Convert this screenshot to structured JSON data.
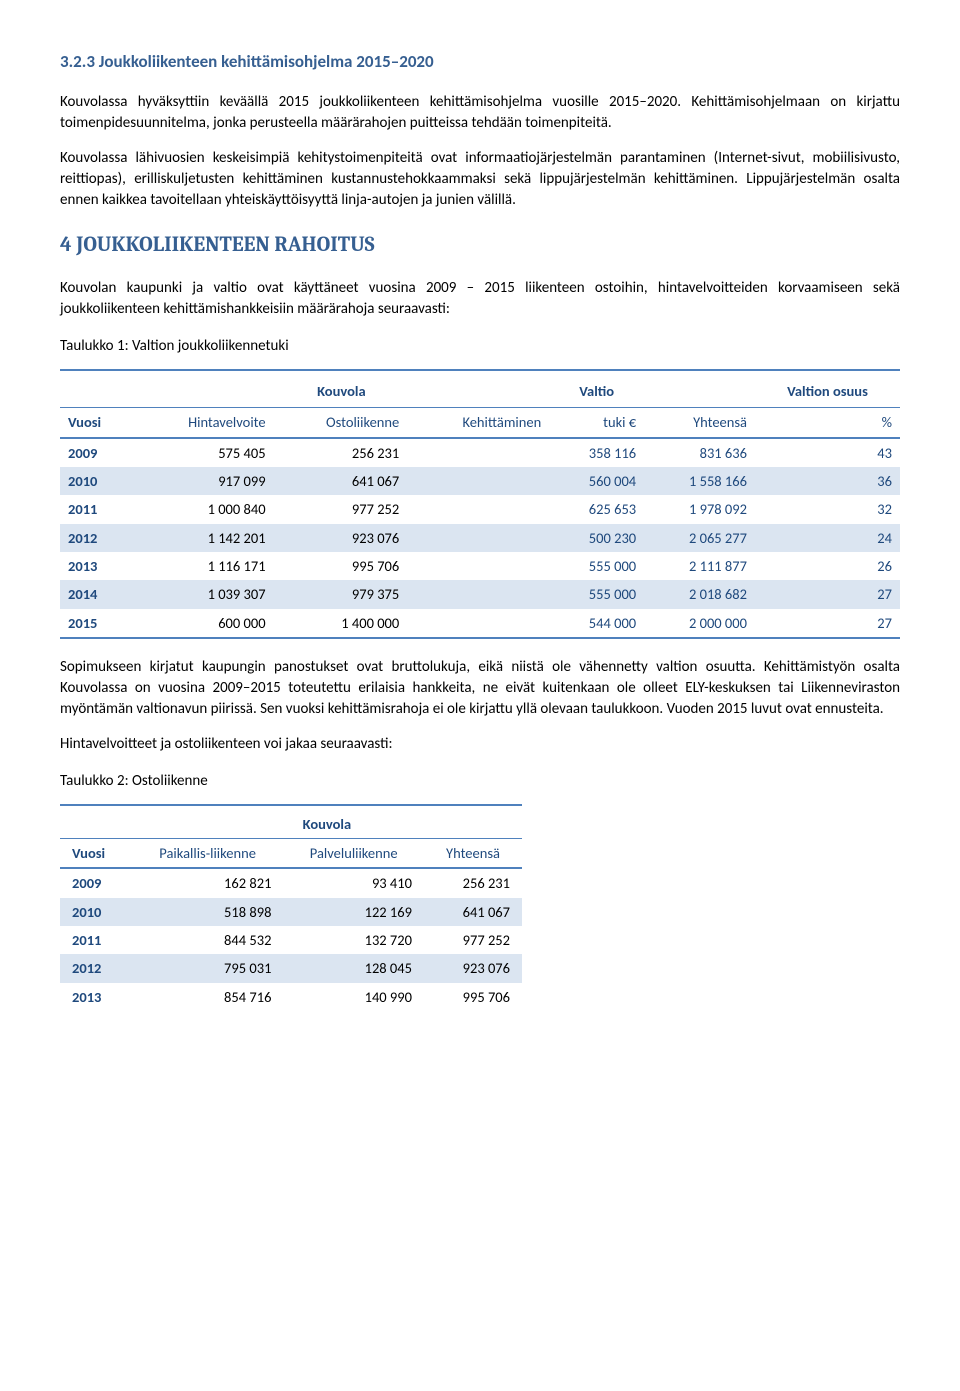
{
  "colors": {
    "accent_blue": "#365f91",
    "deep_blue": "#1f497d",
    "border_blue": "#4f81bd",
    "row_alt_bg": "#dbe5f1",
    "text": "#000000",
    "background": "#ffffff"
  },
  "typography": {
    "body_font": "Calibri",
    "body_size_pt": 11,
    "heading_font": "Cambria",
    "h2_size_pt": 16,
    "h3_size_pt": 13
  },
  "heading323": "3.2.3   Joukkoliikenteen kehittämisohjelma 2015–2020",
  "para1": "Kouvolassa hyväksyttiin keväällä 2015 joukkoliikenteen kehittämisohjelma vuosille 2015–2020. Kehittämisohjelmaan on kirjattu toimenpidesuunnitelma, jonka perusteella määrärahojen puitteissa tehdään toimenpiteitä.",
  "para2": "Kouvolassa lähivuosien keskeisimpiä kehitystoimenpiteitä ovat informaatiojärjestelmän parantaminen (Internet-sivut, mobiilisivusto, reittiopas), erilliskuljetusten kehittäminen kustannustehokkaammaksi sekä lippujärjestelmän kehittäminen. Lippujärjestelmän osalta ennen kaikkea tavoitellaan yhteiskäyttöisyyttä linja-autojen ja junien välillä.",
  "section4": "4   JOUKKOLIIKENTEEN RAHOITUS",
  "para3": "Kouvolan kaupunki ja valtio ovat käyttäneet vuosina 2009 – 2015 liikenteen ostoihin, hintavelvoitteiden korvaamiseen sekä joukkoliikenteen kehittämishankkeisiin määrärahoja seuraavasti:",
  "table1_label": "Taulukko 1: Valtion joukkoliikennetuki",
  "table1": {
    "top_headers": {
      "kouvola": "Kouvola",
      "valtio": "Valtio",
      "valtion_osuus": "Valtion osuus"
    },
    "columns": {
      "vuosi": "Vuosi",
      "hintavelvoite": "Hintavelvoite",
      "ostoliikenne": "Ostoliikenne",
      "kehittaminen": "Kehittäminen",
      "tuki": "tuki €",
      "yhteensa": "Yhteensä",
      "pct": "%"
    },
    "rows": [
      {
        "vuosi": "2009",
        "hinta": "575 405",
        "osto": "256 231",
        "keh": "",
        "tuki": "358 116",
        "yht": "831 636",
        "pct": "43"
      },
      {
        "vuosi": "2010",
        "hinta": "917 099",
        "osto": "641 067",
        "keh": "",
        "tuki": "560 004",
        "yht": "1 558 166",
        "pct": "36"
      },
      {
        "vuosi": "2011",
        "hinta": "1 000 840",
        "osto": "977 252",
        "keh": "",
        "tuki": "625 653",
        "yht": "1 978 092",
        "pct": "32"
      },
      {
        "vuosi": "2012",
        "hinta": "1 142 201",
        "osto": "923 076",
        "keh": "",
        "tuki": "500 230",
        "yht": "2 065 277",
        "pct": "24"
      },
      {
        "vuosi": "2013",
        "hinta": "1 116 171",
        "osto": "995 706",
        "keh": "",
        "tuki": "555 000",
        "yht": "2 111 877",
        "pct": "26"
      },
      {
        "vuosi": "2014",
        "hinta": "1 039 307",
        "osto": "979 375",
        "keh": "",
        "tuki": "555 000",
        "yht": "2 018 682",
        "pct": "27"
      },
      {
        "vuosi": "2015",
        "hinta": "600 000",
        "osto": "1 400 000",
        "keh": "",
        "tuki": "544 000",
        "yht": "2 000 000",
        "pct": "27"
      }
    ]
  },
  "para4": "Sopimukseen kirjatut kaupungin panostukset ovat bruttolukuja, eikä niistä ole vähennetty valtion osuutta. Kehittämistyön osalta Kouvolassa on vuosina 2009–2015 toteutettu erilaisia hankkeita, ne eivät kuitenkaan ole olleet ELY-keskuksen tai Liikenneviraston myöntämän valtionavun piirissä. Sen vuoksi kehittämisrahoja ei ole kirjattu yllä olevaan taulukkoon. Vuoden 2015 luvut ovat ennusteita.",
  "para5": "Hintavelvoitteet ja ostoliikenteen voi jakaa seuraavasti:",
  "table2_label": "Taulukko 2: Ostoliikenne",
  "table2": {
    "top_header": "Kouvola",
    "columns": {
      "vuosi": "Vuosi",
      "paikallis": "Paikallis-liikenne",
      "palvelu": "Palveluliikenne",
      "yhteensa": "Yhteensä"
    },
    "rows": [
      {
        "vuosi": "2009",
        "paik": "162 821",
        "palv": "93 410",
        "yht": "256 231"
      },
      {
        "vuosi": "2010",
        "paik": "518 898",
        "palv": "122 169",
        "yht": "641 067"
      },
      {
        "vuosi": "2011",
        "paik": "844 532",
        "palv": "132 720",
        "yht": "977 252"
      },
      {
        "vuosi": "2012",
        "paik": "795 031",
        "palv": "128 045",
        "yht": "923 076"
      },
      {
        "vuosi": "2013",
        "paik": "854 716",
        "palv": "140 990",
        "yht": "995 706"
      }
    ]
  }
}
